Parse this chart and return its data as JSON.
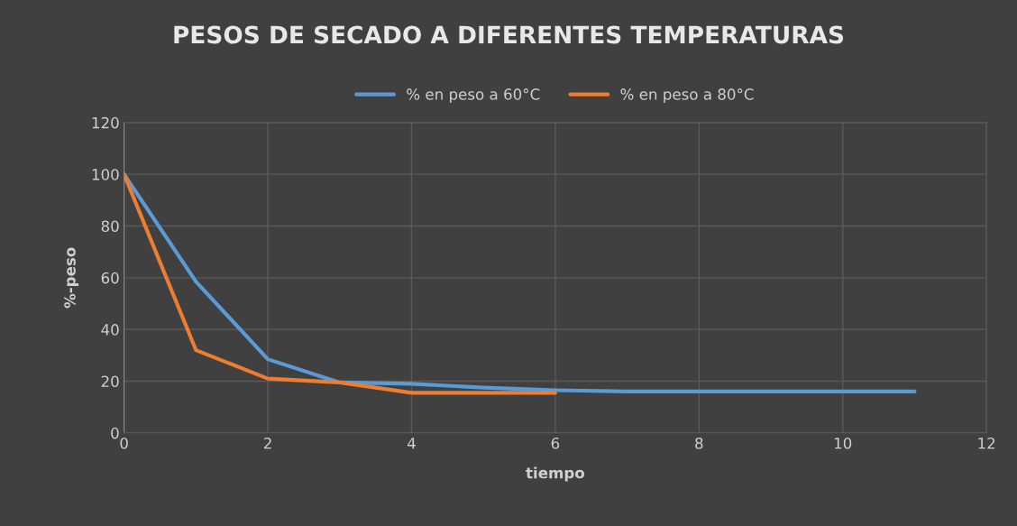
{
  "chart_data": {
    "type": "line",
    "title": "PESOS DE SECADO A DIFERENTES TEMPERATURAS",
    "xlabel": "tiempo",
    "ylabel": "%-peso",
    "x": [
      0,
      1,
      2,
      3,
      4,
      5,
      6,
      7,
      8,
      9,
      10,
      11
    ],
    "series": [
      {
        "name": "% en peso a 60°C",
        "color": "#5b9bd5",
        "values": [
          100,
          58.5,
          28.5,
          19.5,
          19,
          17.5,
          16.5,
          16,
          16,
          16,
          16,
          16
        ]
      },
      {
        "name": "% en peso a 80°C",
        "color": "#ed7d31",
        "x": [
          0,
          1,
          2,
          3,
          4,
          5,
          6
        ],
        "values": [
          100,
          32,
          21,
          19.5,
          15.5,
          15.5,
          15.5
        ]
      }
    ],
    "xlim": [
      0,
      12
    ],
    "xticks": [
      0,
      2,
      4,
      6,
      8,
      10,
      12
    ],
    "ylim": [
      0,
      120
    ],
    "yticks": [
      0,
      20,
      40,
      60,
      80,
      100,
      120
    ],
    "grid": true,
    "legend": "top",
    "marker": "none",
    "line_style": "solid"
  }
}
